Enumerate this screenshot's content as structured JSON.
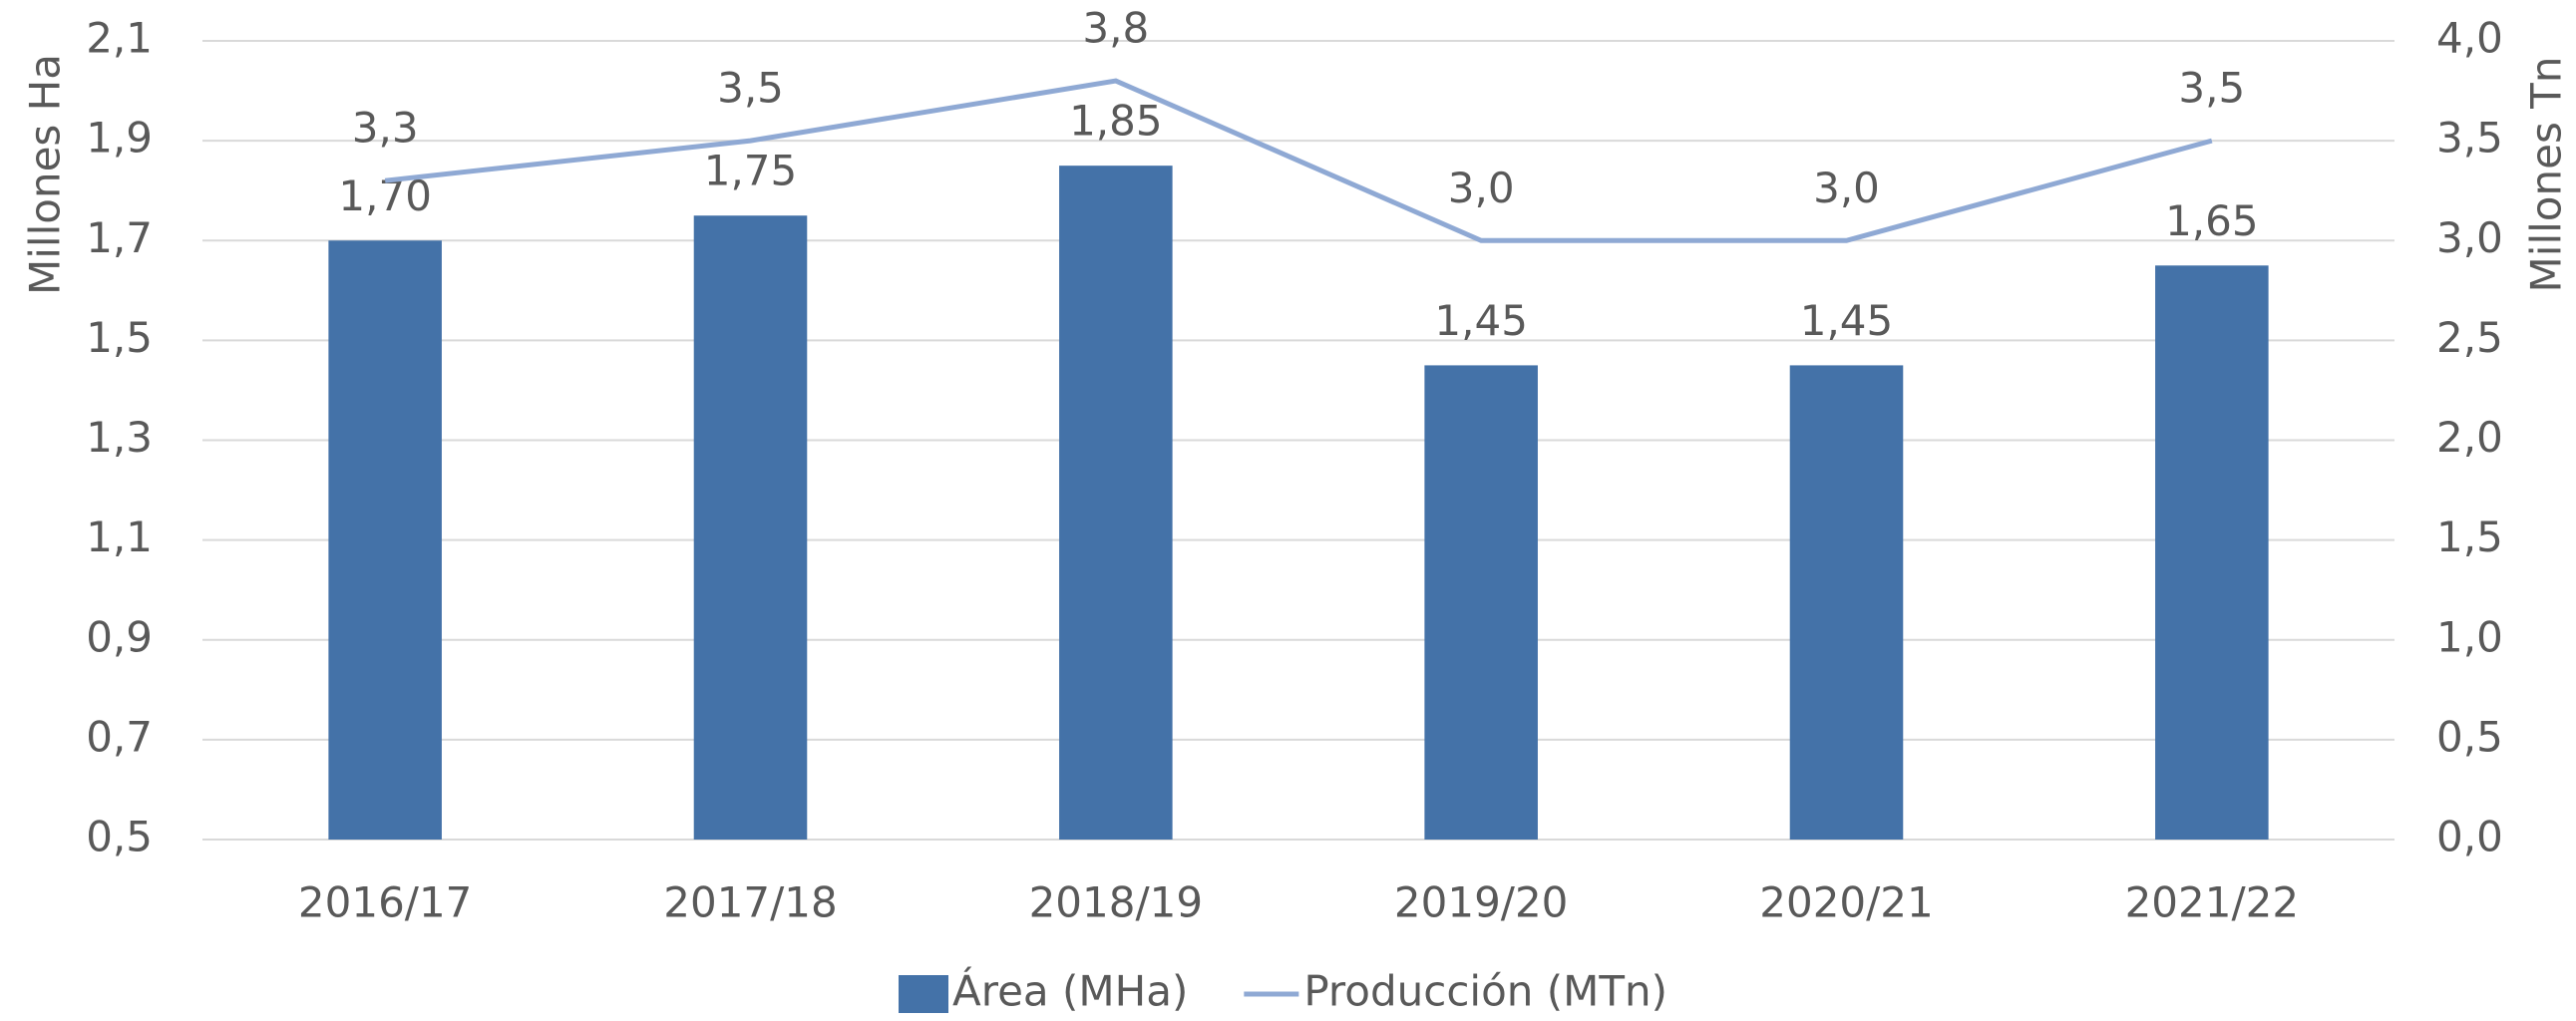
{
  "chart_data": {
    "type": "bar_line",
    "categories": [
      "2016/17",
      "2017/18",
      "2018/19",
      "2019/20",
      "2020/21",
      "2021/22"
    ],
    "series": [
      {
        "name": "Área (MHa)",
        "type": "bar",
        "color": "#4472a8",
        "axis": "y",
        "values": [
          1.7,
          1.75,
          1.85,
          1.45,
          1.45,
          1.65
        ],
        "value_labels": [
          "1,70",
          "1,75",
          "1,85",
          "1,45",
          "1,45",
          "1,65"
        ]
      },
      {
        "name": "Producción (MTn)",
        "type": "line",
        "color": "#8fa9d4",
        "axis": "y2",
        "values": [
          3.3,
          3.5,
          3.8,
          3.0,
          3.0,
          3.5
        ],
        "value_labels": [
          "3,3",
          "3,5",
          "3,8",
          "3,0",
          "3,0",
          "3,5"
        ]
      }
    ],
    "ylabel": "Millones Ha",
    "y2label": "Millones Tn",
    "ylim": [
      0.5,
      2.1
    ],
    "yticks": [
      {
        "value": 0.5,
        "label": "0,5"
      },
      {
        "value": 0.7,
        "label": "0,7"
      },
      {
        "value": 0.9,
        "label": "0,9"
      },
      {
        "value": 1.1,
        "label": "1,1"
      },
      {
        "value": 1.3,
        "label": "1,3"
      },
      {
        "value": 1.5,
        "label": "1,5"
      },
      {
        "value": 1.7,
        "label": "1,7"
      },
      {
        "value": 1.9,
        "label": "1,9"
      },
      {
        "value": 2.1,
        "label": "2,1"
      }
    ],
    "y2lim": [
      0,
      4
    ],
    "y2ticks": [
      {
        "value": 0,
        "label": "0,0"
      },
      {
        "value": 0.5,
        "label": "0,5"
      },
      {
        "value": 1,
        "label": "1,0"
      },
      {
        "value": 1.5,
        "label": "1,5"
      },
      {
        "value": 2,
        "label": "2,0"
      },
      {
        "value": 2.5,
        "label": "2,5"
      },
      {
        "value": 3,
        "label": "3,0"
      },
      {
        "value": 3.5,
        "label": "3,5"
      },
      {
        "value": 4,
        "label": "4,0"
      }
    ],
    "grid": true,
    "legend": "bottom"
  }
}
